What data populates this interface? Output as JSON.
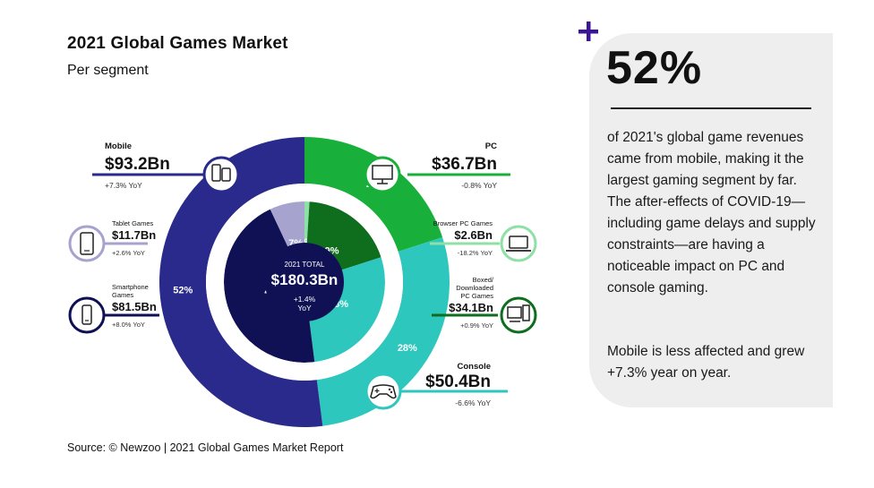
{
  "header": {
    "title": "2021 Global Games Market",
    "subtitle": "Per segment"
  },
  "source": "Source: © Newzoo | 2021 Global Games Market Report",
  "stat": {
    "value": "52%",
    "text1": "of 2021's global game revenues came from mobile, making it the largest gaming segment by far. The after-effects of COVID-19—including game delays and supply constraints—are having a noticeable impact on PC and console gaming.",
    "text2": "Mobile is less affected and grew +7.3% year on year.",
    "accent": "#3c1596"
  },
  "chart_data": {
    "type": "donut",
    "center": {
      "label": "2021 TOTAL",
      "value": "$180.3Bn",
      "growth_line1": "+1.4%",
      "growth_line2": "YoY"
    },
    "outer_ring": [
      {
        "name": "Mobile",
        "percent": 52,
        "label": "52%",
        "color": "#2a2a8c",
        "value": "$93.2Bn",
        "growth": "+7.3% YoY"
      },
      {
        "name": "PC",
        "percent": 20,
        "label": "20%",
        "color": "#18b03a",
        "value": "$36.7Bn",
        "growth": "-0.8% YoY"
      },
      {
        "name": "Console",
        "percent": 28,
        "label": "28%",
        "color": "#2ec7bd",
        "value": "$50.4Bn",
        "growth": "-6.6% YoY"
      }
    ],
    "inner_ring": [
      {
        "name": "Smartphone Games",
        "percent": 45,
        "label": "45%",
        "color": "#101054",
        "value": "$81.5Bn",
        "growth": "+8.0% YoY"
      },
      {
        "name": "Tablet Games",
        "percent": 7,
        "label": "7%",
        "color": "#a6a3cf",
        "value": "$11.7Bn",
        "growth": "+2.6% YoY"
      },
      {
        "name": "Browser PC Games",
        "percent": 1,
        "label": "1%",
        "color": "#8fe0a6",
        "value": "$2.6Bn",
        "growth": "-18.2% YoY"
      },
      {
        "name": "Boxed/ Downloaded PC Games",
        "percent": 19,
        "label": "19%",
        "color": "#0f6e1e",
        "value": "$34.1Bn",
        "growth": "+0.9% YoY"
      },
      {
        "name": "Console",
        "percent": 28,
        "label": "28%",
        "color": "#2ec7bd",
        "value": "$50.4Bn",
        "growth": "-6.6% YoY"
      }
    ]
  }
}
